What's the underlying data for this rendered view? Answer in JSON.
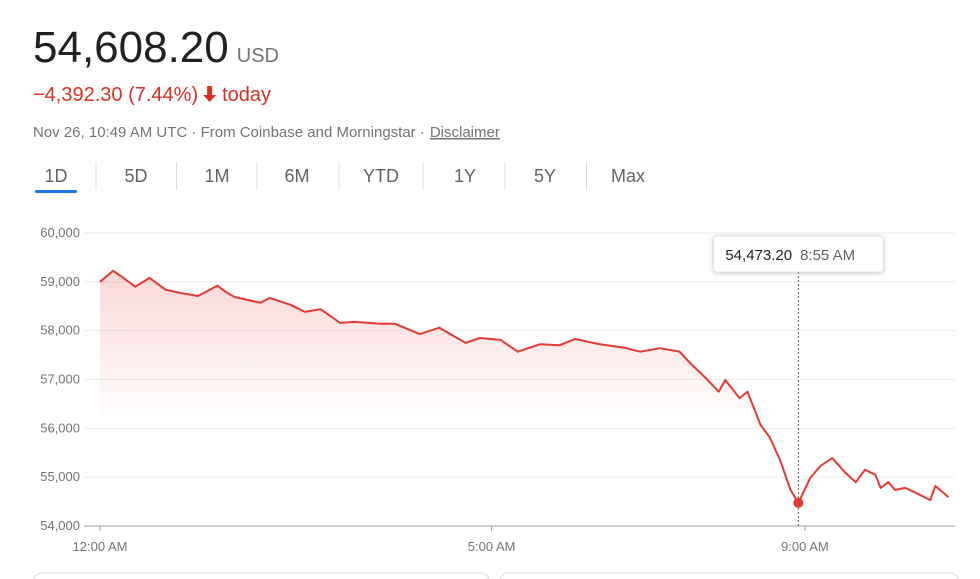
{
  "header": {
    "price": "54,608.20",
    "currency": "USD",
    "change": "−4,392.30 (7.44%)",
    "period": "today",
    "meta": "Nov 26, 10:49 AM UTC · From Coinbase and Morningstar ·",
    "disclaimer": "Disclaimer"
  },
  "tabs": [
    "1D",
    "5D",
    "1M",
    "6M",
    "YTD",
    "1Y",
    "5Y",
    "Max"
  ],
  "selected_tab": 0,
  "chart_data": {
    "type": "line",
    "color": "#e53935",
    "x": [
      0,
      10,
      17,
      27,
      38,
      50,
      61,
      75,
      90,
      96,
      103,
      123,
      130,
      146,
      157,
      169,
      184,
      195,
      215,
      226,
      245,
      260,
      280,
      291,
      307,
      320,
      337,
      352,
      364,
      383,
      402,
      414,
      429,
      444,
      452,
      464,
      474,
      479,
      490,
      496,
      506,
      513,
      521,
      529,
      535,
      544,
      552,
      561,
      571,
      579,
      586,
      594,
      598,
      604,
      609,
      617,
      625,
      636,
      640,
      650
    ],
    "values": [
      59000,
      59225,
      59100,
      58900,
      59080,
      58840,
      58775,
      58710,
      58920,
      58800,
      58690,
      58570,
      58670,
      58530,
      58385,
      58440,
      58160,
      58180,
      58140,
      58140,
      57930,
      58060,
      57750,
      57850,
      57810,
      57570,
      57720,
      57700,
      57830,
      57720,
      57650,
      57570,
      57640,
      57570,
      57340,
      57030,
      56750,
      56990,
      56620,
      56750,
      56070,
      55820,
      55350,
      54740,
      54473.2,
      54980,
      55230,
      55390,
      55090,
      54900,
      55150,
      55050,
      54780,
      54900,
      54740,
      54780,
      54680,
      54530,
      54820,
      54590
    ],
    "xlim": [
      0,
      655
    ],
    "ylim": [
      54000,
      60000
    ],
    "xticks": [
      {
        "value": 0,
        "label": "12:00 AM"
      },
      {
        "value": 300,
        "label": "5:00 AM"
      },
      {
        "value": 540,
        "label": "9:00 AM"
      }
    ],
    "yticks": [
      {
        "value": 54000,
        "label": "54,000"
      },
      {
        "value": 55000,
        "label": "55,000"
      },
      {
        "value": 56000,
        "label": "56,000"
      },
      {
        "value": 57000,
        "label": "57,000"
      },
      {
        "value": 58000,
        "label": "58,000"
      },
      {
        "value": 59000,
        "label": "59,000"
      },
      {
        "value": 60000,
        "label": "60,000"
      }
    ],
    "grid": true,
    "tooltip": {
      "index": 44,
      "value_label": "54,473.20",
      "time": "8:55 AM"
    }
  }
}
